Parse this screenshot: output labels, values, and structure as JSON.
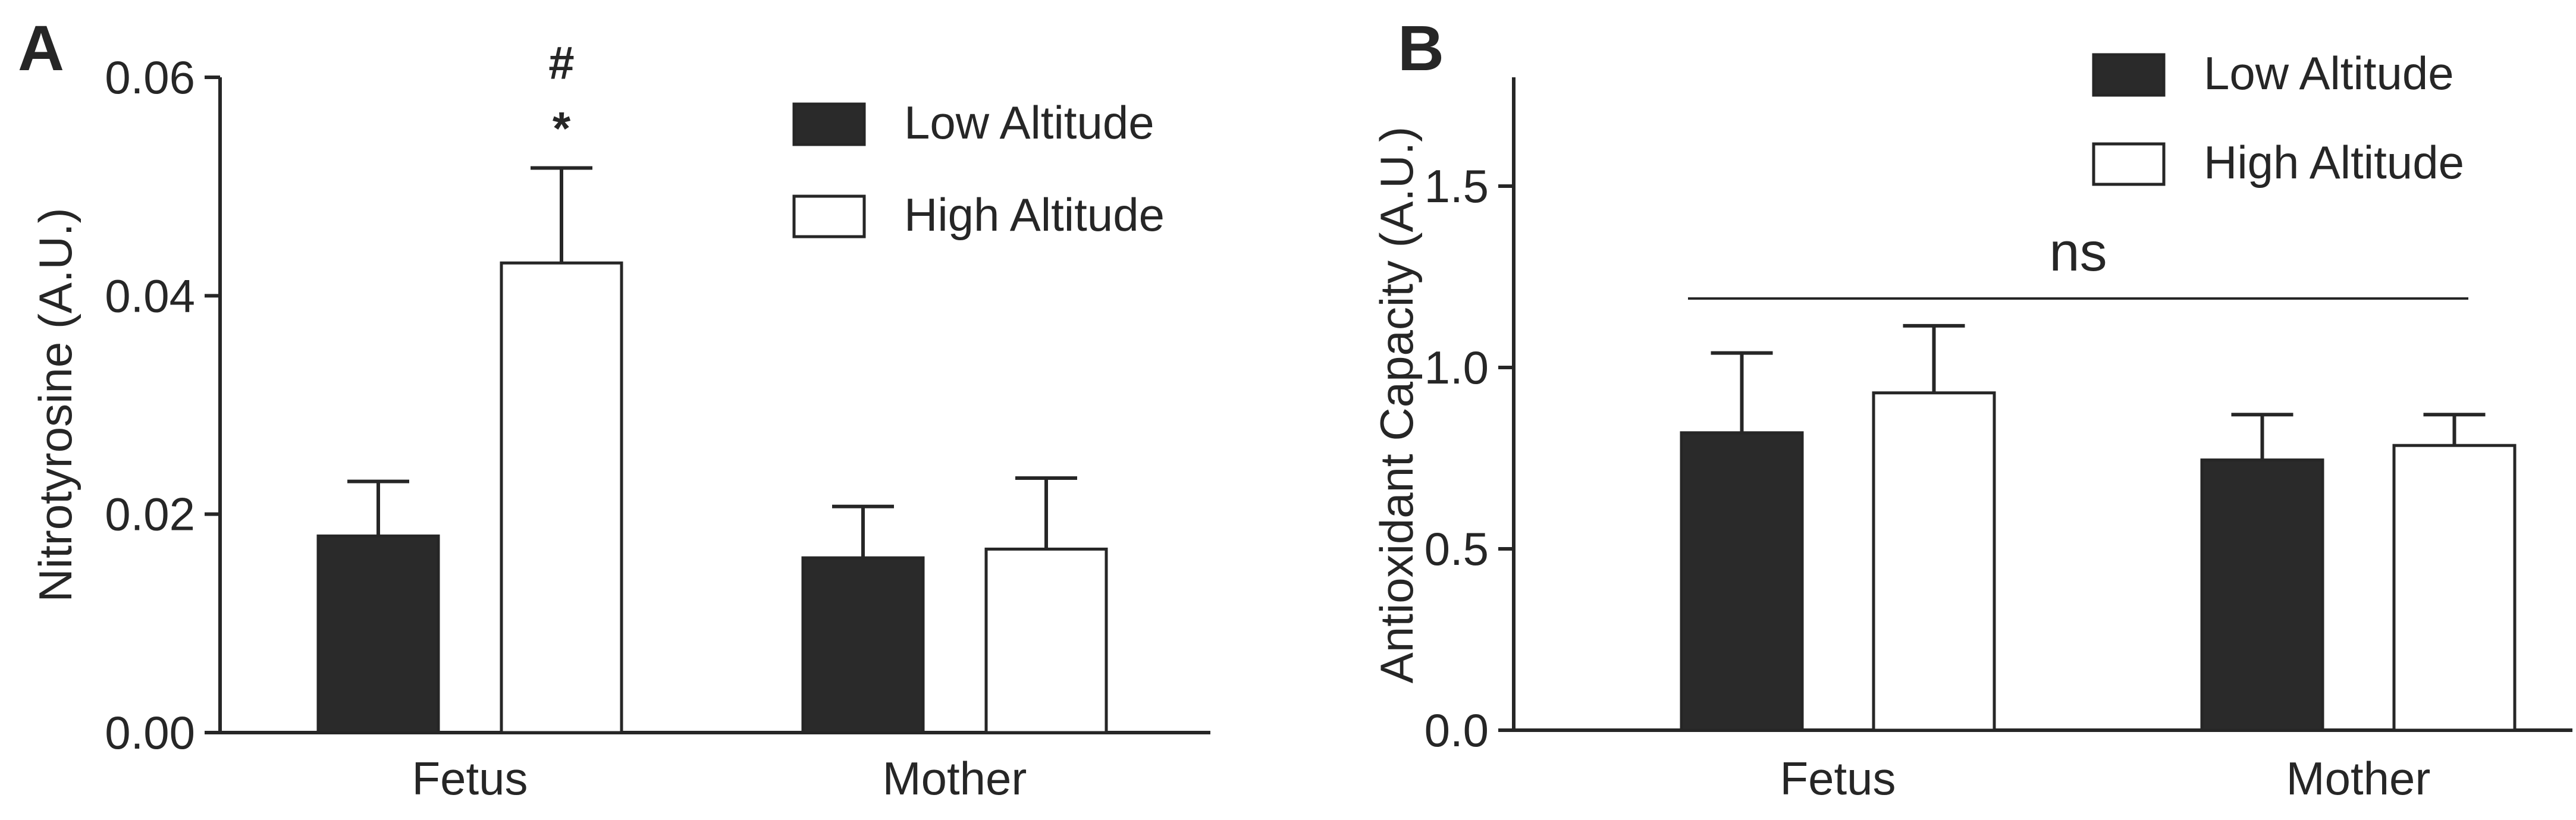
{
  "colors": {
    "low": "#2a2a2a",
    "high": "#ffffff",
    "stroke": "#262626",
    "text": "#262626"
  },
  "chart_data": [
    {
      "panel": "A",
      "type": "bar",
      "title": "",
      "xlabel": "",
      "ylabel": "Nitrotyrosine (A.U.)",
      "ylim": [
        0,
        0.06
      ],
      "yticks": [
        0.0,
        0.02,
        0.04,
        0.06
      ],
      "ytick_labels": [
        "0.00",
        "0.02",
        "0.04",
        "0.06"
      ],
      "categories": [
        "Fetus",
        "Mother"
      ],
      "series": [
        {
          "name": "Low Altitude",
          "values": [
            0.018,
            0.016
          ],
          "errors": [
            0.005,
            0.0047
          ]
        },
        {
          "name": "High Altitude",
          "values": [
            0.043,
            0.0168
          ],
          "errors": [
            0.0087,
            0.0065
          ]
        }
      ],
      "legend": {
        "position": "top-right",
        "entries": [
          "Low Altitude",
          "High Altitude"
        ]
      },
      "annotations": [
        {
          "text": "#",
          "category": "Fetus",
          "series": "High Altitude"
        },
        {
          "text": "*",
          "category": "Fetus",
          "series": "High Altitude"
        }
      ]
    },
    {
      "panel": "B",
      "type": "bar",
      "title": "",
      "xlabel": "",
      "ylabel": "Antioxidant Capacity (A.U.)",
      "ylim": [
        0,
        1.8
      ],
      "yticks": [
        0.0,
        0.5,
        1.0,
        1.5
      ],
      "ytick_labels": [
        "0.0",
        "0.5",
        "1.0",
        "1.5"
      ],
      "categories": [
        "Fetus",
        "Mother"
      ],
      "series": [
        {
          "name": "Low Altitude",
          "values": [
            0.82,
            0.745
          ],
          "errors": [
            0.22,
            0.125
          ]
        },
        {
          "name": "High Altitude",
          "values": [
            0.93,
            0.785
          ],
          "errors": [
            0.185,
            0.085
          ]
        }
      ],
      "legend": {
        "position": "top-right",
        "entries": [
          "Low Altitude",
          "High Altitude"
        ]
      },
      "annotations": [
        {
          "text": "ns",
          "spans": [
            "Fetus",
            "Mother"
          ]
        }
      ]
    }
  ]
}
